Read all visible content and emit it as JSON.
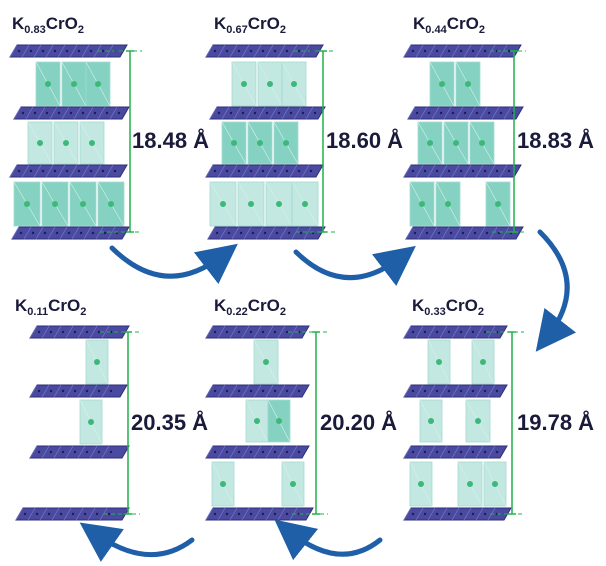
{
  "colors": {
    "layer": "#4a4aa0",
    "layer_dark": "#2e2e78",
    "octa": "#7fd0c0",
    "octa_light": "#bfe7e0",
    "atom": "#3cb878",
    "measure": "#22b14c",
    "arrow": "#1f5fa8"
  },
  "panels": [
    {
      "id": "p1",
      "formula_pre": "K",
      "formula_sub": "0.83",
      "formula_post": "CrO",
      "formula_sub2": "2",
      "distance": "18.48 Å"
    },
    {
      "id": "p2",
      "formula_pre": "K",
      "formula_sub": "0.67",
      "formula_post": "CrO",
      "formula_sub2": "2",
      "distance": "18.60 Å"
    },
    {
      "id": "p3",
      "formula_pre": "K",
      "formula_sub": "0.44",
      "formula_post": "CrO",
      "formula_sub2": "2",
      "distance": "18.83 Å"
    },
    {
      "id": "p4",
      "formula_pre": "K",
      "formula_sub": "0.11",
      "formula_post": "CrO",
      "formula_sub2": "2",
      "distance": "20.35 Å"
    },
    {
      "id": "p5",
      "formula_pre": "K",
      "formula_sub": "0.22",
      "formula_post": "CrO",
      "formula_sub2": "2",
      "distance": "20.20 Å"
    },
    {
      "id": "p6",
      "formula_pre": "K",
      "formula_sub": "0.33",
      "formula_post": "CrO",
      "formula_sub2": "2",
      "distance": "19.78 Å"
    }
  ]
}
